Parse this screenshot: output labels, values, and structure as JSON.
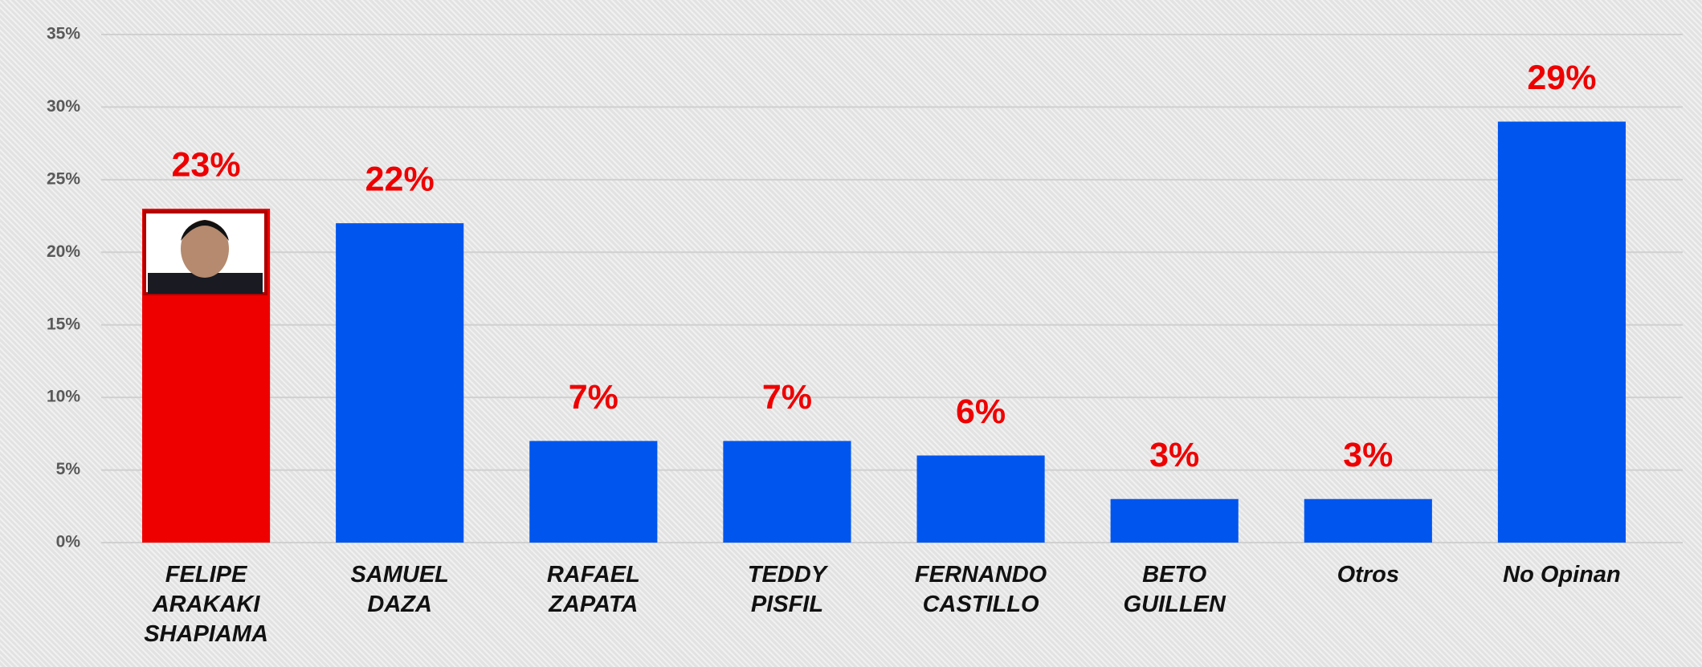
{
  "chart_data": {
    "type": "bar",
    "categories": [
      "FELIPE\nARAKAKI\nSHAPIAMA",
      "SAMUEL\nDAZA",
      "RAFAEL\nZAPATA",
      "TEDDY\nPISFIL",
      "FERNANDO\nCASTILLO",
      "BETO\nGUILLEN",
      "Otros",
      "No Opinan"
    ],
    "values": [
      23,
      22,
      7,
      7,
      6,
      3,
      3,
      29
    ],
    "value_labels": [
      "23%",
      "22%",
      "7%",
      "7%",
      "6%",
      "3%",
      "3%",
      "29%"
    ],
    "colors": [
      "#ee0000",
      "#0055ee",
      "#0055ee",
      "#0055ee",
      "#0055ee",
      "#0055ee",
      "#0055ee",
      "#0055ee"
    ],
    "ylim": [
      0,
      35
    ],
    "yticks": [
      {
        "value": 0,
        "label": "0%"
      },
      {
        "value": 5,
        "label": "5%"
      },
      {
        "value": 10,
        "label": "10%"
      },
      {
        "value": 15,
        "label": "15%"
      },
      {
        "value": 20,
        "label": "20%"
      },
      {
        "value": 25,
        "label": "25%"
      },
      {
        "value": 30,
        "label": "30%"
      },
      {
        "value": 35,
        "label": "35%"
      }
    ],
    "grid": true
  }
}
